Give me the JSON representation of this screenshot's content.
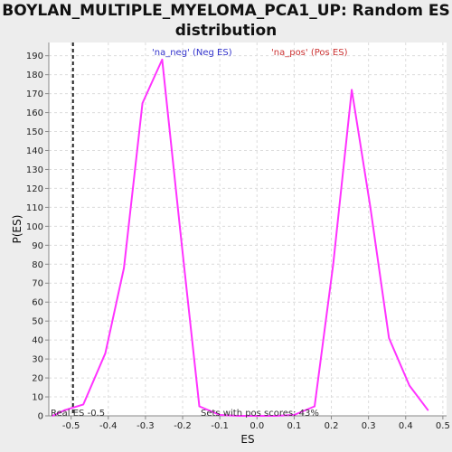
{
  "chart_data": {
    "type": "line",
    "title": "BOYLAN_MULTIPLE_MYELOMA_PCA1_UP: Random ES distribution",
    "xlabel": "ES",
    "ylabel": "P(ES)",
    "xlim": [
      -0.56,
      0.51
    ],
    "ylim": [
      0,
      197
    ],
    "x_ticks": [
      -0.5,
      -0.4,
      -0.3,
      -0.2,
      -0.1,
      0.0,
      0.1,
      0.2,
      0.3,
      0.4,
      0.5
    ],
    "x_tick_labels": [
      "-0.5",
      "-0.4",
      "-0.3",
      "-0.2",
      "-0.1",
      "0.0",
      "0.1",
      "0.2",
      "0.3",
      "0.4",
      "0.5"
    ],
    "y_ticks": [
      0,
      10,
      20,
      30,
      40,
      50,
      60,
      70,
      80,
      90,
      100,
      110,
      120,
      130,
      140,
      150,
      160,
      170,
      180,
      190
    ],
    "grid": true,
    "series": [
      {
        "color": "#ff33ff",
        "x": [
          -0.55,
          -0.517,
          -0.467,
          -0.408,
          -0.358,
          -0.308,
          -0.255,
          -0.205,
          -0.155,
          -0.1,
          -0.05,
          0.0,
          0.05,
          0.1,
          0.155,
          0.205,
          0.255,
          0.305,
          0.355,
          0.41,
          0.46
        ],
        "y": [
          0,
          3,
          6,
          33,
          78,
          165,
          188,
          95,
          5,
          0.5,
          0,
          0,
          0,
          0.5,
          5,
          80,
          172,
          110,
          41,
          16,
          3
        ]
      }
    ],
    "real_es": -0.495,
    "real_es_label": "Real ES -0.5",
    "legend_neg": "'na_neg' (Neg ES)",
    "legend_pos": "'na_pos' (Pos ES)",
    "legend_neg_color": "#3333cc",
    "legend_pos_color": "#cc3333",
    "annotation": "Sets with pos scores: 43%"
  }
}
